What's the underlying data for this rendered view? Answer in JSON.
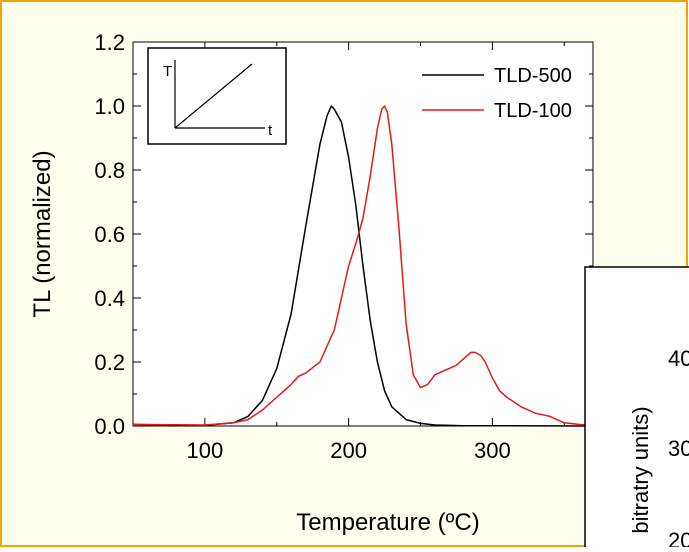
{
  "frame": {
    "background": "#fffff0",
    "border_color": "#f0a800"
  },
  "chart_data": [
    {
      "type": "line",
      "title": "",
      "xlabel": "Temperature (ºC)",
      "ylabel": "TL (normalized)",
      "xlim": [
        50,
        370
      ],
      "ylim": [
        0,
        1.2
      ],
      "xticks": [
        "100",
        "200",
        "300"
      ],
      "yticks": [
        "0.0",
        "0.2",
        "0.4",
        "0.6",
        "0.8",
        "1.0",
        "1.2"
      ],
      "grid": false,
      "legend_position": "top-right",
      "series": [
        {
          "name": "TLD-500",
          "color": "#000000",
          "x": [
            50,
            80,
            100,
            120,
            130,
            140,
            150,
            160,
            170,
            180,
            185,
            188,
            190,
            195,
            200,
            205,
            210,
            215,
            220,
            225,
            230,
            240,
            250,
            260,
            280,
            370
          ],
          "y": [
            0.005,
            0.001,
            0.002,
            0.01,
            0.03,
            0.08,
            0.18,
            0.35,
            0.62,
            0.88,
            0.97,
            1.0,
            0.99,
            0.95,
            0.84,
            0.69,
            0.5,
            0.33,
            0.2,
            0.11,
            0.06,
            0.02,
            0.008,
            0.003,
            0.001,
            0.0
          ]
        },
        {
          "name": "TLD-100",
          "color": "#e41a1a",
          "x": [
            50,
            100,
            120,
            130,
            140,
            150,
            160,
            165,
            170,
            180,
            190,
            200,
            205,
            210,
            215,
            220,
            223,
            225,
            227,
            230,
            235,
            240,
            245,
            250,
            255,
            260,
            265,
            270,
            275,
            280,
            285,
            288,
            292,
            295,
            300,
            305,
            310,
            320,
            330,
            340,
            350,
            360,
            370
          ],
          "y": [
            0.005,
            0.003,
            0.01,
            0.02,
            0.05,
            0.09,
            0.13,
            0.155,
            0.165,
            0.2,
            0.3,
            0.5,
            0.57,
            0.65,
            0.78,
            0.93,
            0.99,
            1.0,
            0.98,
            0.88,
            0.62,
            0.32,
            0.16,
            0.12,
            0.13,
            0.16,
            0.17,
            0.18,
            0.19,
            0.21,
            0.23,
            0.23,
            0.22,
            0.2,
            0.15,
            0.11,
            0.09,
            0.06,
            0.04,
            0.03,
            0.01,
            0.005,
            0.002
          ]
        }
      ],
      "inset": {
        "y_label": "T",
        "x_label": "t"
      }
    },
    {
      "type": "line",
      "note": "second overlapping chart, mostly cropped off the bottom-right",
      "ylabel": "bitratry units)",
      "yticks": [
        "40",
        "30",
        "20"
      ]
    }
  ]
}
